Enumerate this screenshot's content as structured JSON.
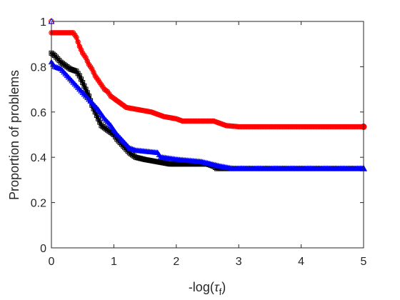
{
  "chart_data": {
    "type": "line",
    "title": "",
    "xlabel": "-log(τf)",
    "xlabel_parts": {
      "prefix": "-log(",
      "symbol": "τ",
      "subscript": "f",
      "suffix": ")"
    },
    "ylabel": "Proportion of problems",
    "xlim": [
      0,
      5
    ],
    "ylim": [
      0,
      1
    ],
    "x_ticks": [
      0,
      1,
      2,
      3,
      4,
      5
    ],
    "y_ticks": [
      0,
      0.2,
      0.4,
      0.6,
      0.8,
      1
    ],
    "x_tick_labels": [
      "0",
      "1",
      "2",
      "3",
      "4",
      "5"
    ],
    "y_tick_labels": [
      "0",
      "0.2",
      "0.4",
      "0.6",
      "0.8",
      "1"
    ],
    "grid": false,
    "legend": "none",
    "series": [
      {
        "color": "#000000",
        "marker": "square",
        "points": [
          [
            0,
            0.86
          ],
          [
            0.05,
            0.85
          ],
          [
            0.15,
            0.82
          ],
          [
            0.3,
            0.79
          ],
          [
            0.4,
            0.78
          ],
          [
            0.45,
            0.76
          ],
          [
            0.5,
            0.73
          ],
          [
            0.55,
            0.7
          ],
          [
            0.6,
            0.67
          ],
          [
            0.65,
            0.63
          ],
          [
            0.7,
            0.6
          ],
          [
            0.75,
            0.57
          ],
          [
            0.8,
            0.54
          ],
          [
            0.9,
            0.52
          ],
          [
            1.0,
            0.5
          ],
          [
            1.05,
            0.48
          ],
          [
            1.15,
            0.45
          ],
          [
            1.25,
            0.42
          ],
          [
            1.35,
            0.4
          ],
          [
            1.5,
            0.39
          ],
          [
            1.7,
            0.38
          ],
          [
            1.9,
            0.37
          ],
          [
            2.2,
            0.37
          ],
          [
            2.5,
            0.37
          ],
          [
            2.6,
            0.36
          ],
          [
            2.65,
            0.35
          ],
          [
            5.0,
            0.35
          ]
        ]
      },
      {
        "color": "#ff0000",
        "marker": "circle",
        "points": [
          [
            0,
            0.95
          ],
          [
            0.35,
            0.95
          ],
          [
            0.4,
            0.93
          ],
          [
            0.45,
            0.89
          ],
          [
            0.5,
            0.86
          ],
          [
            0.55,
            0.84
          ],
          [
            0.6,
            0.81
          ],
          [
            0.65,
            0.79
          ],
          [
            0.7,
            0.76
          ],
          [
            0.75,
            0.74
          ],
          [
            0.8,
            0.72
          ],
          [
            0.85,
            0.7
          ],
          [
            0.9,
            0.69
          ],
          [
            0.95,
            0.67
          ],
          [
            1.0,
            0.66
          ],
          [
            1.1,
            0.64
          ],
          [
            1.2,
            0.62
          ],
          [
            1.4,
            0.61
          ],
          [
            1.6,
            0.6
          ],
          [
            1.7,
            0.59
          ],
          [
            1.8,
            0.58
          ],
          [
            2.0,
            0.57
          ],
          [
            2.1,
            0.56
          ],
          [
            2.6,
            0.56
          ],
          [
            2.7,
            0.55
          ],
          [
            2.8,
            0.54
          ],
          [
            3.0,
            0.535
          ],
          [
            5.0,
            0.535
          ]
        ]
      },
      {
        "color": "#0000ff",
        "marker": "triangle",
        "points": [
          [
            0,
            0.82
          ],
          [
            0.05,
            0.8
          ],
          [
            0.15,
            0.79
          ],
          [
            0.25,
            0.76
          ],
          [
            0.35,
            0.73
          ],
          [
            0.45,
            0.7
          ],
          [
            0.55,
            0.67
          ],
          [
            0.65,
            0.64
          ],
          [
            0.75,
            0.61
          ],
          [
            0.85,
            0.57
          ],
          [
            0.95,
            0.54
          ],
          [
            1.05,
            0.5
          ],
          [
            1.15,
            0.47
          ],
          [
            1.25,
            0.44
          ],
          [
            1.35,
            0.43
          ],
          [
            1.7,
            0.42
          ],
          [
            1.75,
            0.4
          ],
          [
            2.0,
            0.39
          ],
          [
            2.4,
            0.38
          ],
          [
            2.55,
            0.37
          ],
          [
            2.7,
            0.36
          ],
          [
            2.9,
            0.35
          ],
          [
            5.0,
            0.35
          ]
        ]
      }
    ]
  }
}
